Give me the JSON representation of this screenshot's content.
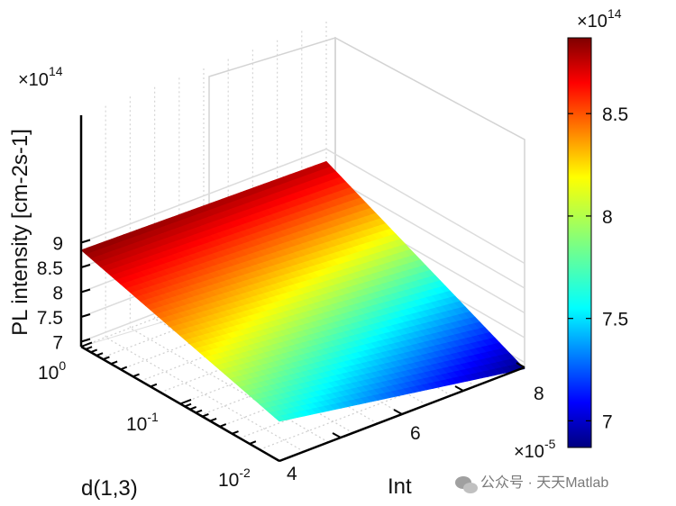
{
  "chart_data": {
    "type": "surface",
    "title": "",
    "zlabel": "PL intensity [cm-2s-1]",
    "xlabel": "Int",
    "ylabel": "d(1,3)",
    "x_ticks": [
      "4",
      "6",
      "8"
    ],
    "x_multiplier": "×10",
    "x_multiplier_exp": "-5",
    "x_range": [
      4,
      8
    ],
    "y_scale": "log",
    "y_range": [
      0.01,
      1
    ],
    "y_ticks": [
      {
        "base": "10",
        "exp": "0",
        "value": 1
      },
      {
        "base": "10",
        "exp": "-1",
        "value": 0.1
      },
      {
        "base": "10",
        "exp": "-2",
        "value": 0.01
      }
    ],
    "z_ticks": [
      "7",
      "7.5",
      "8",
      "8.5",
      "9"
    ],
    "z_range": [
      6.9,
      9
    ],
    "z_multiplier": "×10",
    "z_multiplier_exp": "14",
    "surface_corners": [
      {
        "x": 4,
        "y": 1,
        "z": 8.85
      },
      {
        "x": 8,
        "y": 1,
        "z": 8.75
      },
      {
        "x": 8,
        "y": 0.01,
        "z": 6.87
      },
      {
        "x": 4,
        "y": 0.01,
        "z": 7.7
      }
    ],
    "colorbar": {
      "colormap": "jet",
      "ticks": [
        "7",
        "7.5",
        "8",
        "8.5"
      ],
      "range": [
        6.87,
        8.87
      ],
      "multiplier": "×10",
      "multiplier_exp": "14"
    },
    "grid": true
  },
  "watermark": "公众号 · 天天Matlab"
}
